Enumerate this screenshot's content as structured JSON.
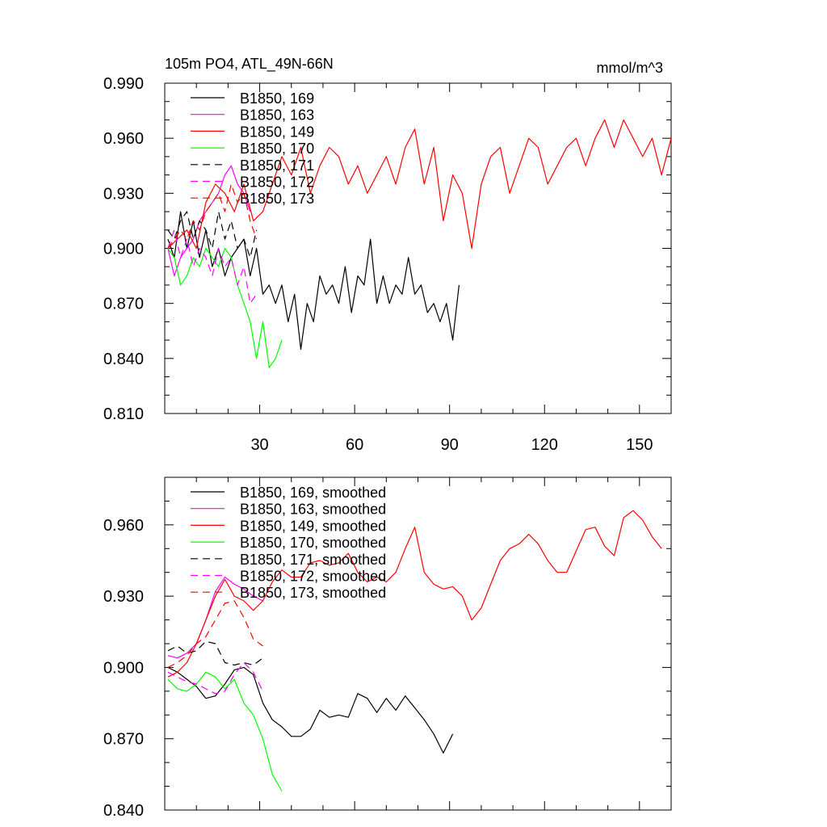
{
  "chart_data": [
    {
      "type": "line",
      "title": "105m PO4, ATL_49N-66N",
      "units_label": "mmol/m^3",
      "xlim": [
        0,
        160
      ],
      "ylim": [
        0.81,
        0.99
      ],
      "xticks": [
        30,
        60,
        90,
        120,
        150
      ],
      "xtick_labels": [
        "30",
        "60",
        "90",
        "120",
        "150"
      ],
      "yticks": [
        0.81,
        0.84,
        0.87,
        0.9,
        0.93,
        0.96,
        0.99
      ],
      "ytick_labels": [
        "0.810",
        "0.840",
        "0.870",
        "0.900",
        "0.930",
        "0.960",
        "0.990"
      ],
      "legend_position": "top-left",
      "series": [
        {
          "name": "B1850, 169",
          "color": "#000000",
          "dash": "solid",
          "x": [
            1,
            3,
            5,
            7,
            9,
            11,
            13,
            15,
            17,
            19,
            21,
            23,
            25,
            27,
            29,
            31,
            33,
            35,
            37,
            39,
            41,
            43,
            45,
            47,
            49,
            51,
            53,
            55,
            57,
            59,
            61,
            63,
            65,
            67,
            69,
            71,
            73,
            75,
            77,
            79,
            81,
            83,
            85,
            87,
            89,
            91,
            93
          ],
          "y": [
            0.905,
            0.895,
            0.92,
            0.9,
            0.915,
            0.895,
            0.91,
            0.89,
            0.9,
            0.885,
            0.895,
            0.9,
            0.905,
            0.885,
            0.9,
            0.875,
            0.88,
            0.87,
            0.88,
            0.86,
            0.875,
            0.845,
            0.87,
            0.86,
            0.885,
            0.875,
            0.88,
            0.87,
            0.89,
            0.865,
            0.885,
            0.88,
            0.905,
            0.87,
            0.885,
            0.87,
            0.88,
            0.875,
            0.895,
            0.875,
            0.88,
            0.865,
            0.87,
            0.86,
            0.87,
            0.85,
            0.88
          ]
        },
        {
          "name": "B1850, 163",
          "color": "#ff00ff",
          "dash": "solid",
          "x": [
            1,
            3,
            5,
            7,
            9,
            11,
            13,
            15,
            17,
            19,
            21,
            23,
            25,
            27
          ],
          "y": [
            0.9,
            0.885,
            0.895,
            0.9,
            0.905,
            0.915,
            0.92,
            0.925,
            0.93,
            0.94,
            0.945,
            0.935,
            0.93,
            0.92
          ]
        },
        {
          "name": "B1850, 149",
          "color": "#ff0000",
          "dash": "solid",
          "x": [
            1,
            4,
            7,
            10,
            13,
            16,
            19,
            22,
            25,
            28,
            31,
            34,
            37,
            40,
            43,
            46,
            49,
            52,
            55,
            58,
            61,
            64,
            67,
            70,
            73,
            76,
            79,
            82,
            85,
            88,
            91,
            94,
            97,
            100,
            103,
            106,
            109,
            112,
            115,
            118,
            121,
            124,
            127,
            130,
            133,
            136,
            139,
            142,
            145,
            148,
            151,
            154,
            157,
            160
          ],
          "y": [
            0.9,
            0.905,
            0.91,
            0.9,
            0.925,
            0.935,
            0.93,
            0.92,
            0.935,
            0.915,
            0.92,
            0.935,
            0.95,
            0.94,
            0.955,
            0.93,
            0.945,
            0.955,
            0.95,
            0.935,
            0.945,
            0.93,
            0.94,
            0.95,
            0.935,
            0.955,
            0.965,
            0.935,
            0.955,
            0.915,
            0.94,
            0.93,
            0.9,
            0.935,
            0.95,
            0.955,
            0.93,
            0.945,
            0.96,
            0.955,
            0.935,
            0.945,
            0.955,
            0.96,
            0.945,
            0.96,
            0.97,
            0.955,
            0.97,
            0.96,
            0.95,
            0.96,
            0.94,
            0.96
          ]
        },
        {
          "name": "B1850, 170",
          "color": "#00ff00",
          "dash": "solid",
          "x": [
            1,
            3,
            5,
            7,
            9,
            11,
            13,
            15,
            17,
            19,
            21,
            23,
            25,
            27,
            29,
            31,
            33,
            35,
            37
          ],
          "y": [
            0.9,
            0.895,
            0.88,
            0.885,
            0.895,
            0.89,
            0.9,
            0.895,
            0.89,
            0.9,
            0.895,
            0.88,
            0.87,
            0.86,
            0.84,
            0.86,
            0.835,
            0.84,
            0.85
          ]
        },
        {
          "name": "B1850, 171",
          "color": "#000000",
          "dash": "dashed",
          "x": [
            1,
            3,
            5,
            7,
            9,
            11,
            13,
            15,
            17,
            19,
            21,
            23,
            25,
            27,
            29
          ],
          "y": [
            0.91,
            0.905,
            0.915,
            0.92,
            0.905,
            0.915,
            0.91,
            0.9,
            0.92,
            0.905,
            0.915,
            0.9,
            0.905,
            0.895,
            0.91
          ]
        },
        {
          "name": "B1850, 172",
          "color": "#ff00ff",
          "dash": "dashed",
          "x": [
            1,
            3,
            5,
            7,
            9,
            11,
            13,
            15,
            17,
            19,
            21,
            23,
            25,
            27,
            29
          ],
          "y": [
            0.9,
            0.91,
            0.895,
            0.905,
            0.89,
            0.9,
            0.895,
            0.885,
            0.9,
            0.89,
            0.895,
            0.88,
            0.89,
            0.87,
            0.875
          ]
        },
        {
          "name": "B1850, 173",
          "color": "#ff0000",
          "dash": "dashed",
          "x": [
            1,
            3,
            5,
            7,
            9,
            11,
            13,
            15,
            17,
            19,
            21,
            23,
            25,
            27,
            29
          ],
          "y": [
            0.9,
            0.905,
            0.91,
            0.905,
            0.915,
            0.91,
            0.92,
            0.925,
            0.93,
            0.92,
            0.935,
            0.925,
            0.93,
            0.915,
            0.905
          ]
        }
      ]
    },
    {
      "type": "line",
      "xlim": [
        0,
        160
      ],
      "ylim": [
        0.84,
        0.98
      ],
      "yticks": [
        0.84,
        0.87,
        0.9,
        0.93,
        0.96
      ],
      "ytick_labels": [
        "0.840",
        "0.870",
        "0.900",
        "0.930",
        "0.960"
      ],
      "legend_position": "top-left",
      "series": [
        {
          "name": "B1850, 169, smoothed",
          "color": "#000000",
          "dash": "solid",
          "x": [
            1,
            4,
            7,
            10,
            13,
            16,
            19,
            22,
            25,
            28,
            31,
            34,
            37,
            40,
            43,
            46,
            49,
            52,
            55,
            58,
            61,
            64,
            67,
            70,
            73,
            76,
            79,
            82,
            85,
            88,
            91
          ],
          "y": [
            0.9,
            0.898,
            0.895,
            0.892,
            0.887,
            0.888,
            0.893,
            0.899,
            0.9,
            0.897,
            0.885,
            0.878,
            0.875,
            0.871,
            0.871,
            0.874,
            0.882,
            0.879,
            0.88,
            0.879,
            0.889,
            0.887,
            0.881,
            0.887,
            0.882,
            0.888,
            0.883,
            0.878,
            0.872,
            0.864,
            0.872
          ]
        },
        {
          "name": "B1850, 163, smoothed",
          "color": "#ff00ff",
          "dash": "solid",
          "x": [
            1,
            4,
            7,
            10,
            13,
            16,
            19,
            22,
            25,
            28,
            31
          ],
          "y": [
            0.905,
            0.904,
            0.906,
            0.91,
            0.92,
            0.932,
            0.938,
            0.935,
            0.933,
            0.93,
            0.928
          ]
        },
        {
          "name": "B1850, 149, smoothed",
          "color": "#ff0000",
          "dash": "solid",
          "x": [
            1,
            4,
            7,
            10,
            13,
            16,
            19,
            22,
            25,
            28,
            31,
            34,
            37,
            40,
            43,
            46,
            49,
            52,
            55,
            58,
            61,
            64,
            67,
            70,
            73,
            76,
            79,
            82,
            85,
            88,
            91,
            94,
            97,
            100,
            103,
            106,
            109,
            112,
            115,
            118,
            121,
            124,
            127,
            130,
            133,
            136,
            139,
            142,
            145,
            148,
            151,
            154,
            157
          ],
          "y": [
            0.896,
            0.898,
            0.902,
            0.91,
            0.92,
            0.93,
            0.937,
            0.93,
            0.928,
            0.924,
            0.928,
            0.936,
            0.941,
            0.938,
            0.938,
            0.944,
            0.945,
            0.943,
            0.944,
            0.948,
            0.94,
            0.936,
            0.938,
            0.936,
            0.94,
            0.95,
            0.959,
            0.94,
            0.935,
            0.933,
            0.934,
            0.93,
            0.92,
            0.925,
            0.935,
            0.945,
            0.95,
            0.952,
            0.956,
            0.952,
            0.945,
            0.94,
            0.94,
            0.949,
            0.958,
            0.959,
            0.951,
            0.947,
            0.963,
            0.966,
            0.962,
            0.955,
            0.95
          ]
        },
        {
          "name": "B1850, 170, smoothed",
          "color": "#00ff00",
          "dash": "solid",
          "x": [
            1,
            4,
            7,
            10,
            13,
            16,
            19,
            22,
            25,
            28,
            31,
            34,
            37
          ],
          "y": [
            0.895,
            0.891,
            0.89,
            0.893,
            0.898,
            0.896,
            0.891,
            0.895,
            0.885,
            0.88,
            0.87,
            0.855,
            0.848
          ]
        },
        {
          "name": "B1850, 171, smoothed",
          "color": "#000000",
          "dash": "dashed",
          "x": [
            1,
            4,
            7,
            10,
            13,
            16,
            19,
            22,
            25,
            28,
            31
          ],
          "y": [
            0.907,
            0.909,
            0.906,
            0.907,
            0.911,
            0.91,
            0.902,
            0.901,
            0.902,
            0.901,
            0.904
          ]
        },
        {
          "name": "B1850, 172, smoothed",
          "color": "#ff00ff",
          "dash": "dashed",
          "x": [
            1,
            4,
            7,
            10,
            13,
            16,
            19,
            22,
            25,
            28,
            31
          ],
          "y": [
            0.898,
            0.896,
            0.894,
            0.893,
            0.891,
            0.889,
            0.89,
            0.897,
            0.902,
            0.898,
            0.89
          ]
        },
        {
          "name": "B1850, 173, smoothed",
          "color": "#ff0000",
          "dash": "dashed",
          "x": [
            1,
            4,
            7,
            10,
            13,
            16,
            19,
            22,
            25,
            28,
            31
          ],
          "y": [
            0.9,
            0.902,
            0.905,
            0.91,
            0.913,
            0.92,
            0.927,
            0.928,
            0.921,
            0.912,
            0.909
          ]
        }
      ]
    }
  ]
}
